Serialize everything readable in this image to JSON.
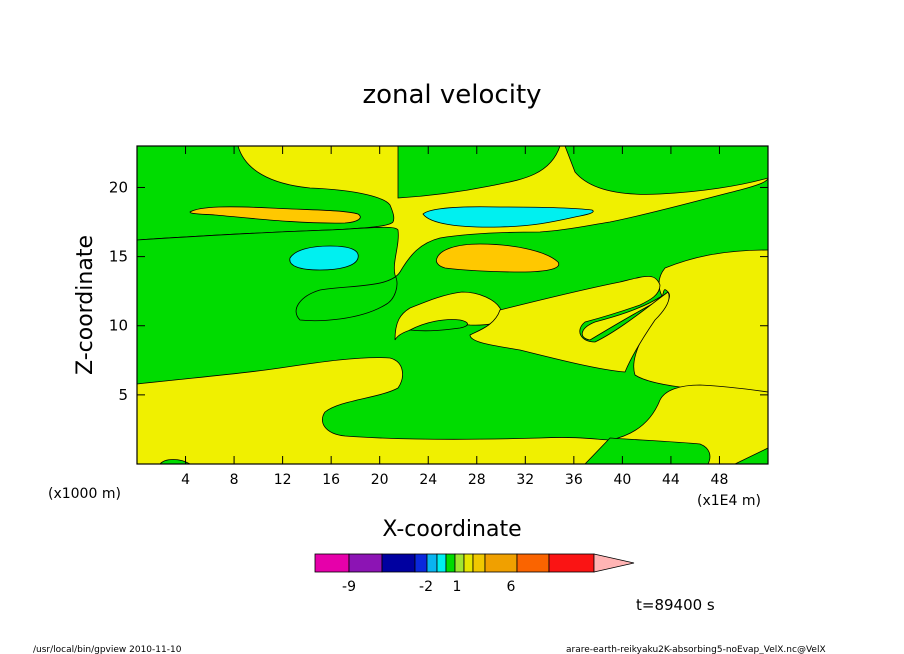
{
  "chart_data": {
    "type": "contour",
    "title": "zonal velocity",
    "xlabel": "X-coordinate",
    "ylabel": "Z-coordinate",
    "x_unit_left": "(x1000 m)",
    "x_unit_right": "(x1E4 m)",
    "xlim": [
      0,
      52
    ],
    "ylim": [
      0,
      23
    ],
    "x_ticks": [
      4,
      8,
      12,
      16,
      20,
      24,
      28,
      32,
      36,
      40,
      44,
      48
    ],
    "y_ticks": [
      5,
      10,
      15,
      20
    ],
    "legend_labels": [
      "-9",
      "-2",
      "1",
      "6"
    ],
    "time_label": "t=89400 s",
    "footer_left": "/usr/local/bin/gpview  2010-11-10",
    "footer_right": "arare-earth-reikyaku2K-absorbing5-noEvap_VelX.nc@VelX",
    "colorbar_colors": [
      "#e600aa",
      "#8c14b4",
      "#0000a0",
      "#0a28dc",
      "#0ab4f0",
      "#00f0f0",
      "#00dc00",
      "#a0e632",
      "#e6e600",
      "#f0c800",
      "#f0a000",
      "#fa6400",
      "#fa1414",
      "#fa7878",
      "#ffb4b4"
    ],
    "contour_colors": {
      "green": "#00dc00",
      "yellow": "#f0f000",
      "orange": "#ffc800",
      "cyan": "#00f0f0"
    }
  }
}
